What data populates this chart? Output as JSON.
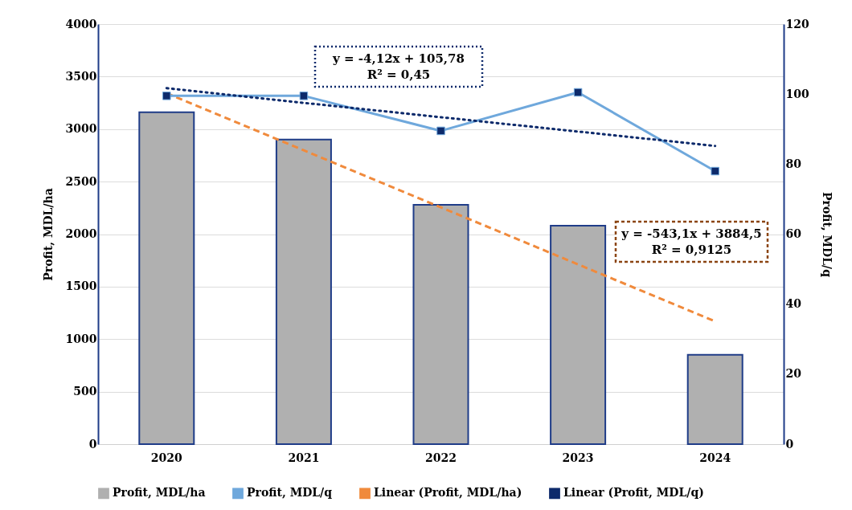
{
  "chart_data": {
    "type": "bar",
    "categories": [
      "2020",
      "2021",
      "2022",
      "2023",
      "2024"
    ],
    "ylabel": "Profit, MDL/ha",
    "y2label": "Profit, MDL/q",
    "ylim": [
      0,
      4000
    ],
    "yticks": [
      0,
      500,
      1000,
      1500,
      2000,
      2500,
      3000,
      3500,
      4000
    ],
    "y2lim": [
      0,
      120
    ],
    "y2ticks": [
      0,
      20,
      40,
      60,
      80,
      100,
      120
    ],
    "grid": "y",
    "legend": "bottom",
    "series": [
      {
        "name": "Profit, MDL/ha",
        "color": "#b0b0b0",
        "values": [
          3160,
          2900,
          2280,
          2080,
          850
        ]
      },
      {
        "name": "Profit, MDL/q",
        "type": "line",
        "axis": "y2",
        "color": "#6fa8dc",
        "marker": "square",
        "values": [
          99.5,
          99.5,
          89.5,
          100.5,
          78
        ]
      },
      {
        "name": "Linear (Profit, MDL/ha)",
        "type": "line",
        "line_style": "dashed",
        "color": "#f08a3c",
        "values": [
          3341,
          2798,
          2255,
          1712,
          1169
        ]
      },
      {
        "name": "Linear (Profit, MDL/q)",
        "type": "line",
        "axis": "y2",
        "line_style": "dotted",
        "color": "#0d2a6b",
        "values": [
          101.7,
          97.5,
          93.4,
          89.3,
          85.2
        ]
      }
    ],
    "annotations": [
      "y = -4,12x + 105,78\nR² = 0,45",
      "y = -543,1x + 3884,5\nR² = 0,9125"
    ]
  }
}
